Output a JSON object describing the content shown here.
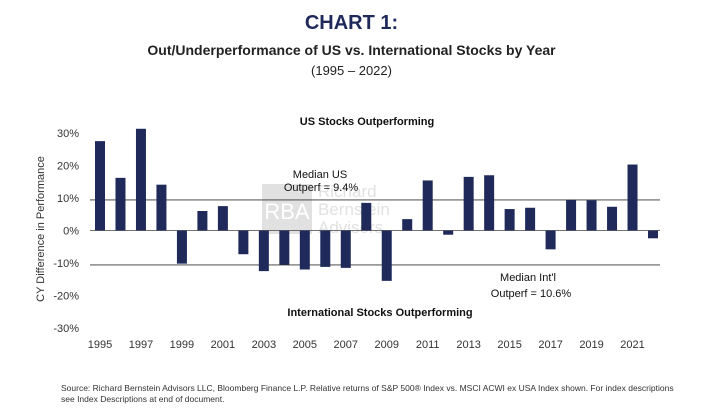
{
  "header": {
    "title": "CHART 1:",
    "subtitle": "Out/Underperformance of US vs. International Stocks by Year",
    "range": "(1995 – 2022)"
  },
  "footer": {
    "source": "Source: Richard Bernstein Advisors LLC, Bloomberg Finance L.P. Relative returns of S&P 500® Index vs. MSCI ACWI ex USA Index shown. For index descriptions see Index Descriptions at end of document."
  },
  "watermark": {
    "initials": "RBA",
    "line1": "Richard",
    "line2": "Bernstein",
    "line3": "Advisors"
  },
  "chart_data": {
    "type": "bar",
    "ylabel": "CY Difference in Performance",
    "ylim": [
      -30,
      30
    ],
    "yticks": [
      30,
      20,
      10,
      0,
      -10,
      -20,
      -30
    ],
    "ytick_labels": [
      "30%",
      "20%",
      "10%",
      "0%",
      "-10%",
      "-20%",
      "-30%"
    ],
    "xtick_labels": [
      "1995",
      "1997",
      "1999",
      "2001",
      "2003",
      "2005",
      "2007",
      "2009",
      "2011",
      "2013",
      "2015",
      "2017",
      "2019",
      "2021"
    ],
    "categories": [
      "1995",
      "1996",
      "1997",
      "1998",
      "1999",
      "2000",
      "2001",
      "2002",
      "2003",
      "2004",
      "2005",
      "2006",
      "2007",
      "2008",
      "2009",
      "2010",
      "2011",
      "2012",
      "2013",
      "2014",
      "2015",
      "2016",
      "2017",
      "2018",
      "2019",
      "2020",
      "2021",
      "2022"
    ],
    "values": [
      27.5,
      16.2,
      31.3,
      14.1,
      -10.2,
      6.0,
      7.5,
      -7.3,
      -12.5,
      -10.5,
      -12.0,
      -11.2,
      -11.5,
      8.5,
      -15.5,
      3.5,
      15.4,
      -1.3,
      16.5,
      17.0,
      6.6,
      7.0,
      -5.8,
      9.4,
      9.3,
      7.3,
      20.3,
      -2.4
    ],
    "bar_color": "#1f2a5a",
    "reference_lines": [
      {
        "value": 9.4,
        "label_line1": "Median US",
        "label_line2": "Outperf = 9.4%"
      },
      {
        "value": -10.6,
        "label_line1": "Median Int'l",
        "label_line2": "Outperf = 10.6%"
      }
    ],
    "annotations": {
      "top": "US Stocks Outperforming",
      "bottom": "International Stocks Outperforming"
    }
  }
}
